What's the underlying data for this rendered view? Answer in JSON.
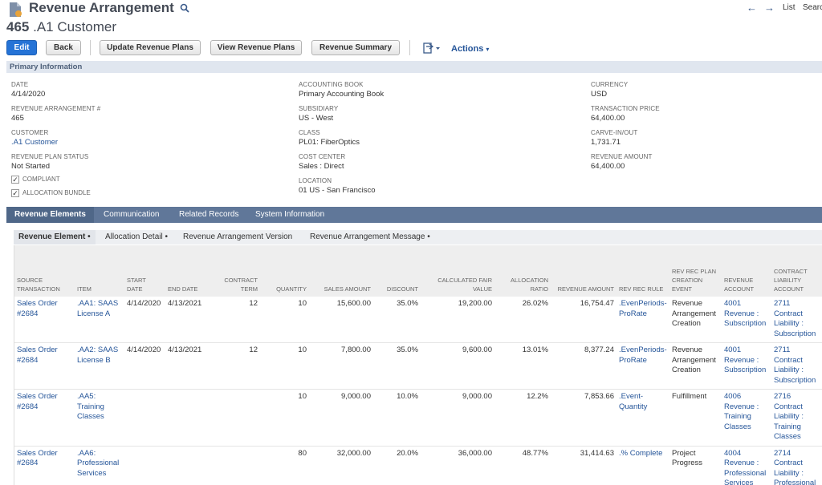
{
  "header": {
    "record_type": "Revenue Arrangement",
    "record_number": "465",
    "record_name": ".A1 Customer",
    "nav_list": "List",
    "nav_search": "Search"
  },
  "buttons": {
    "edit": "Edit",
    "back": "Back",
    "update_plans": "Update Revenue Plans",
    "view_plans": "View Revenue Plans",
    "summary": "Revenue Summary",
    "actions": "Actions"
  },
  "primary": {
    "section_title": "Primary Information",
    "date_label": "DATE",
    "date": "4/14/2020",
    "arr_label": "REVENUE ARRANGEMENT #",
    "arr": "465",
    "customer_label": "CUSTOMER",
    "customer": ".A1 Customer",
    "plan_status_label": "REVENUE PLAN STATUS",
    "plan_status": "Not Started",
    "compliant_label": "COMPLIANT",
    "bundle_label": "ALLOCATION BUNDLE",
    "book_label": "ACCOUNTING BOOK",
    "book": "Primary Accounting Book",
    "subsidiary_label": "SUBSIDIARY",
    "subsidiary": "US - West",
    "class_label": "CLASS",
    "class": "PL01: FiberOptics",
    "cost_center_label": "COST CENTER",
    "cost_center": "Sales : Direct",
    "location_label": "LOCATION",
    "location": "01 US - San Francisco",
    "currency_label": "CURRENCY",
    "currency": "USD",
    "txn_price_label": "TRANSACTION PRICE",
    "txn_price": "64,400.00",
    "carve_label": "CARVE-IN/OUT",
    "carve": "1,731.71",
    "rev_amount_label": "REVENUE AMOUNT",
    "rev_amount": "64,400.00"
  },
  "tabs": [
    "Revenue Elements",
    "Communication",
    "Related Records",
    "System Information"
  ],
  "subtabs": [
    "Revenue Element •",
    "Allocation Detail •",
    "Revenue Arrangement Version",
    "Revenue Arrangement Message •"
  ],
  "table": {
    "columns": [
      "SOURCE TRANSACTION",
      "ITEM",
      "START DATE",
      "END DATE",
      "CONTRACT TERM",
      "QUANTITY",
      "SALES AMOUNT",
      "DISCOUNT",
      "CALCULATED FAIR VALUE",
      "ALLOCATION RATIO",
      "REVENUE AMOUNT",
      "REV REC RULE",
      "REV REC PLAN CREATION EVENT",
      "REVENUE ACCOUNT",
      "CONTRACT LIABILITY ACCOUNT"
    ],
    "rows": [
      [
        "Sales Order #2684",
        ".AA1: SAAS License A",
        "4/14/2020",
        "4/13/2021",
        "12",
        "10",
        "15,600.00",
        "35.0%",
        "19,200.00",
        "26.02%",
        "16,754.47",
        ".EvenPeriods-ProRate",
        "Revenue Arrangement Creation",
        "4001 Revenue : Subscription",
        "2711 Contract Liability : Subscription"
      ],
      [
        "Sales Order #2684",
        ".AA2: SAAS License B",
        "4/14/2020",
        "4/13/2021",
        "12",
        "10",
        "7,800.00",
        "35.0%",
        "9,600.00",
        "13.01%",
        "8,377.24",
        ".EvenPeriods-ProRate",
        "Revenue Arrangement Creation",
        "4001 Revenue : Subscription",
        "2711 Contract Liability : Subscription"
      ],
      [
        "Sales Order #2684",
        ".AA5: Training Classes",
        "",
        "",
        "",
        "10",
        "9,000.00",
        "10.0%",
        "9,000.00",
        "12.2%",
        "7,853.66",
        ".Event-Quantity",
        "Fulfillment",
        "4006 Revenue : Training Classes",
        "2716 Contract Liability : Training Classes"
      ],
      [
        "Sales Order #2684",
        ".AA6: Professional Services",
        "",
        "",
        "",
        "80",
        "32,000.00",
        "20.0%",
        "36,000.00",
        "48.77%",
        "31,414.63",
        ".% Complete",
        "Project Progress",
        "4004 Revenue : Professional Services",
        "2714 Contract Liability : Professional Services"
      ]
    ]
  }
}
